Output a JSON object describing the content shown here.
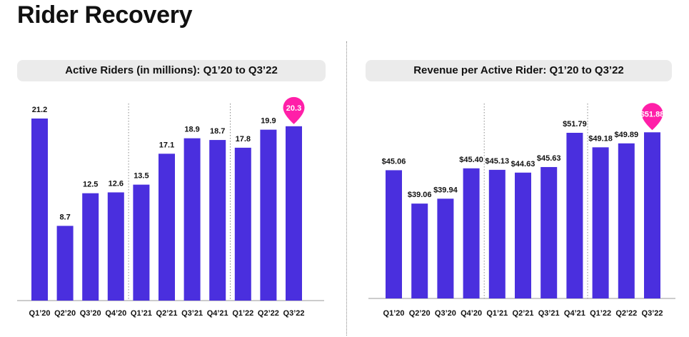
{
  "page": {
    "title": "Rider Recovery"
  },
  "colors": {
    "bar": "#4a2fde",
    "highlight": "#ff1fa8",
    "header_bg": "#ebebeb"
  },
  "chart_data": [
    {
      "type": "bar",
      "title": "Active Riders (in millions): Q1’20 to Q3’22",
      "categories": [
        "Q1’20",
        "Q2’20",
        "Q3’20",
        "Q4’20",
        "Q1’21",
        "Q2’21",
        "Q3’21",
        "Q4’21",
        "Q1’22",
        "Q2’22",
        "Q3’22"
      ],
      "values": [
        21.2,
        8.7,
        12.5,
        12.6,
        13.5,
        17.1,
        18.9,
        18.7,
        17.8,
        19.9,
        20.3
      ],
      "labels": [
        "21.2",
        "8.7",
        "12.5",
        "12.6",
        "13.5",
        "17.1",
        "18.9",
        "18.7",
        "17.8",
        "19.9",
        "20.3"
      ],
      "highlight_index": 10,
      "year_dividers_after": [
        3,
        7
      ],
      "ylim": [
        0,
        21.2
      ],
      "grid": false
    },
    {
      "type": "bar",
      "title": "Revenue per Active Rider: Q1’20 to Q3’22",
      "categories": [
        "Q1’20",
        "Q2’20",
        "Q3’20",
        "Q4’20",
        "Q1’21",
        "Q2’21",
        "Q3’21",
        "Q4’21",
        "Q1’22",
        "Q2’22",
        "Q3’22"
      ],
      "values": [
        45.06,
        39.06,
        39.94,
        45.4,
        45.13,
        44.63,
        45.63,
        51.79,
        49.18,
        49.89,
        51.88
      ],
      "labels": [
        "$45.06",
        "$39.06",
        "$39.94",
        "$45.40",
        "$45.13",
        "$44.63",
        "$45.63",
        "$51.79",
        "$49.18",
        "$49.89",
        "$51.88"
      ],
      "highlight_index": 10,
      "year_dividers_after": [
        3,
        7
      ],
      "ylim": [
        22,
        51.79
      ],
      "grid": false
    }
  ]
}
